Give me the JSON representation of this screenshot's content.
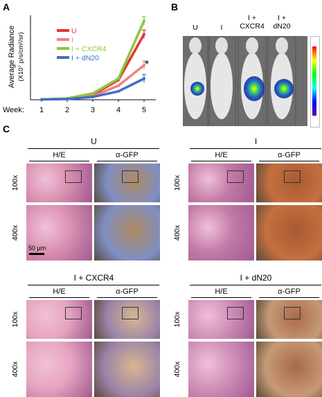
{
  "panels": {
    "a": "A",
    "b": "B",
    "c": "C"
  },
  "chart_data": {
    "type": "line",
    "ylabel_line1": "Average Radiance",
    "ylabel_line2": "(X10⁷ p/s/cm²/sr)",
    "xlabel": "Week:",
    "x": [
      1,
      2,
      3,
      4,
      5
    ],
    "ylim": [
      0,
      12
    ],
    "significance_mark": "*",
    "series": [
      {
        "name": "U",
        "color": "#e8322f",
        "values": [
          0.05,
          0.15,
          0.7,
          2.8,
          9.3
        ]
      },
      {
        "name": "I",
        "color": "#f08080",
        "values": [
          0.05,
          0.12,
          0.5,
          2.0,
          4.9
        ]
      },
      {
        "name": "I + CXCR4",
        "color": "#8dc63f",
        "values": [
          0.05,
          0.2,
          0.9,
          3.0,
          11.2
        ]
      },
      {
        "name": "I + dN20",
        "color": "#3f6fc6",
        "values": [
          0.05,
          0.1,
          0.4,
          1.2,
          3.0
        ]
      }
    ]
  },
  "imaging": {
    "labels": [
      "U",
      "I",
      "I +\nCXCR4",
      "I +\ndN20"
    ],
    "label_lines": [
      [
        "U"
      ],
      [
        "I"
      ],
      [
        "I +",
        "CXCR4"
      ],
      [
        "I +",
        "dN20"
      ]
    ]
  },
  "histology": {
    "groups": [
      {
        "title": "U",
        "stain1": "H/E",
        "stain2": "α-GFP"
      },
      {
        "title": "I",
        "stain1": "H/E",
        "stain2": "α-GFP"
      },
      {
        "title": "I + CXCR4",
        "stain1": "H/E",
        "stain2": "α-GFP"
      },
      {
        "title": "I + dN20",
        "stain1": "H/E",
        "stain2": "α-GFP"
      }
    ],
    "mag_low": "100x",
    "mag_high": "400x",
    "scale_bar": "50 μm"
  }
}
